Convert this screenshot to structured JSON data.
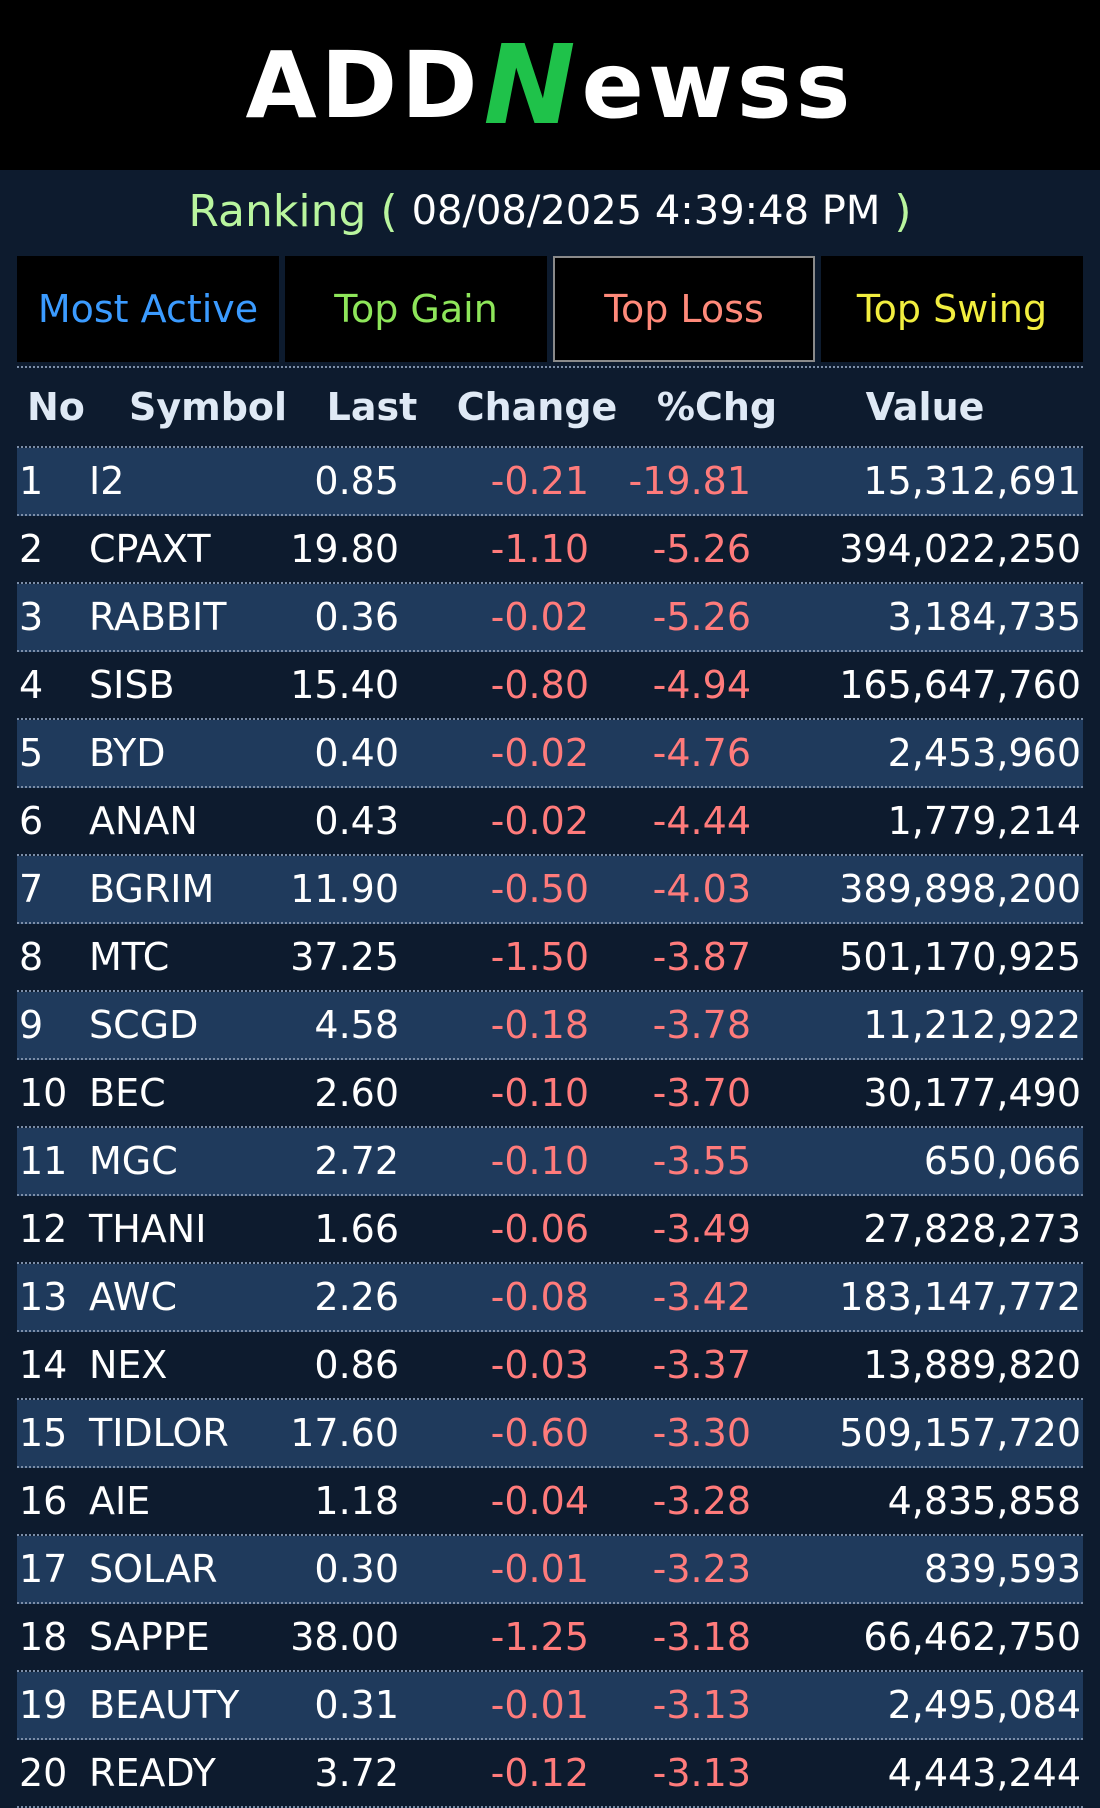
{
  "header": {
    "logo_text_1": "ADD",
    "logo_n": "N",
    "logo_text_2": "ewss"
  },
  "ranking": {
    "label": "Ranking",
    "open_paren": "(",
    "datetime": "08/08/2025 4:39:48 PM",
    "close_paren": ")"
  },
  "tabs": [
    {
      "label": "Most Active"
    },
    {
      "label": "Top Gain"
    },
    {
      "label": "Top Loss"
    },
    {
      "label": "Top Swing"
    }
  ],
  "table": {
    "columns": [
      "No",
      "Symbol",
      "Last",
      "Change",
      "%Chg",
      "Value"
    ],
    "rows": [
      {
        "no": "1",
        "symbol": "I2",
        "last": "0.85",
        "change": "-0.21",
        "pct": "-19.81",
        "value": "15,312,691"
      },
      {
        "no": "2",
        "symbol": "CPAXT",
        "last": "19.80",
        "change": "-1.10",
        "pct": "-5.26",
        "value": "394,022,250"
      },
      {
        "no": "3",
        "symbol": "RABBIT",
        "last": "0.36",
        "change": "-0.02",
        "pct": "-5.26",
        "value": "3,184,735"
      },
      {
        "no": "4",
        "symbol": "SISB",
        "last": "15.40",
        "change": "-0.80",
        "pct": "-4.94",
        "value": "165,647,760"
      },
      {
        "no": "5",
        "symbol": "BYD",
        "last": "0.40",
        "change": "-0.02",
        "pct": "-4.76",
        "value": "2,453,960"
      },
      {
        "no": "6",
        "symbol": "ANAN",
        "last": "0.43",
        "change": "-0.02",
        "pct": "-4.44",
        "value": "1,779,214"
      },
      {
        "no": "7",
        "symbol": "BGRIM",
        "last": "11.90",
        "change": "-0.50",
        "pct": "-4.03",
        "value": "389,898,200"
      },
      {
        "no": "8",
        "symbol": "MTC",
        "last": "37.25",
        "change": "-1.50",
        "pct": "-3.87",
        "value": "501,170,925"
      },
      {
        "no": "9",
        "symbol": "SCGD",
        "last": "4.58",
        "change": "-0.18",
        "pct": "-3.78",
        "value": "11,212,922"
      },
      {
        "no": "10",
        "symbol": "BEC",
        "last": "2.60",
        "change": "-0.10",
        "pct": "-3.70",
        "value": "30,177,490"
      },
      {
        "no": "11",
        "symbol": "MGC",
        "last": "2.72",
        "change": "-0.10",
        "pct": "-3.55",
        "value": "650,066"
      },
      {
        "no": "12",
        "symbol": "THANI",
        "last": "1.66",
        "change": "-0.06",
        "pct": "-3.49",
        "value": "27,828,273"
      },
      {
        "no": "13",
        "symbol": "AWC",
        "last": "2.26",
        "change": "-0.08",
        "pct": "-3.42",
        "value": "183,147,772"
      },
      {
        "no": "14",
        "symbol": "NEX",
        "last": "0.86",
        "change": "-0.03",
        "pct": "-3.37",
        "value": "13,889,820"
      },
      {
        "no": "15",
        "symbol": "TIDLOR",
        "last": "17.60",
        "change": "-0.60",
        "pct": "-3.30",
        "value": "509,157,720"
      },
      {
        "no": "16",
        "symbol": "AIE",
        "last": "1.18",
        "change": "-0.04",
        "pct": "-3.28",
        "value": "4,835,858"
      },
      {
        "no": "17",
        "symbol": "SOLAR",
        "last": "0.30",
        "change": "-0.01",
        "pct": "-3.23",
        "value": "839,593"
      },
      {
        "no": "18",
        "symbol": "SAPPE",
        "last": "38.00",
        "change": "-1.25",
        "pct": "-3.18",
        "value": "66,462,750"
      },
      {
        "no": "19",
        "symbol": "BEAUTY",
        "last": "0.31",
        "change": "-0.01",
        "pct": "-3.13",
        "value": "2,495,084"
      },
      {
        "no": "20",
        "symbol": "READY",
        "last": "3.72",
        "change": "-0.12",
        "pct": "-3.13",
        "value": "4,443,244"
      }
    ]
  }
}
